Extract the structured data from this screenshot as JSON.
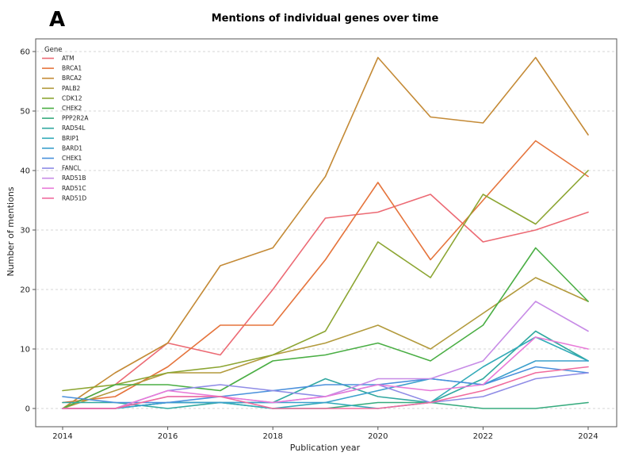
{
  "panel_letter": "A",
  "chart_data": {
    "type": "line",
    "title": "Mentions of individual genes over time",
    "xlabel": "Publication year",
    "ylabel": "Number of mentions",
    "x": [
      2014,
      2015,
      2016,
      2017,
      2018,
      2019,
      2020,
      2021,
      2022,
      2023,
      2024
    ],
    "xlim": [
      2014,
      2024
    ],
    "ylim": [
      0,
      60
    ],
    "xticks": [
      "2014",
      "2016",
      "2018",
      "2020",
      "2022",
      "2024"
    ],
    "xtick_values": [
      2014,
      2016,
      2018,
      2020,
      2022,
      2024
    ],
    "yticks": [
      "0",
      "10",
      "20",
      "30",
      "40",
      "50",
      "60"
    ],
    "ytick_values": [
      0,
      10,
      20,
      30,
      40,
      50,
      60
    ],
    "grid": "horizontal dashed",
    "legend": {
      "title": "Gene",
      "placement": "top-left"
    },
    "series": [
      {
        "name": "ATM",
        "color": "#ec6a74",
        "values": [
          0,
          4,
          11,
          9,
          20,
          32,
          33,
          36,
          28,
          30,
          33
        ]
      },
      {
        "name": "BRCA1",
        "color": "#e5743c",
        "values": [
          1,
          2,
          7,
          14,
          14,
          25,
          38,
          25,
          35,
          45,
          39
        ]
      },
      {
        "name": "BRCA2",
        "color": "#c48a36",
        "values": [
          0,
          6,
          11,
          24,
          27,
          39,
          59,
          49,
          48,
          59,
          46
        ]
      },
      {
        "name": "PALB2",
        "color": "#b29a3c",
        "values": [
          0,
          3,
          6,
          6,
          9,
          11,
          14,
          10,
          16,
          22,
          18
        ]
      },
      {
        "name": "CDK12",
        "color": "#8ca532",
        "values": [
          3,
          4,
          6,
          7,
          9,
          13,
          28,
          22,
          36,
          31,
          40
        ]
      },
      {
        "name": "CHEK2",
        "color": "#4aae44",
        "values": [
          0,
          4,
          4,
          3,
          8,
          9,
          11,
          8,
          14,
          27,
          18
        ]
      },
      {
        "name": "PPP2R2A",
        "color": "#36ab7e",
        "values": [
          0,
          0,
          1,
          1,
          0,
          0,
          1,
          1,
          0,
          0,
          1
        ]
      },
      {
        "name": "RAD54L",
        "color": "#31a8a0",
        "values": [
          1,
          1,
          0,
          1,
          1,
          5,
          2,
          1,
          5,
          13,
          8
        ]
      },
      {
        "name": "BRIP1",
        "color": "#32aab8",
        "values": [
          0,
          0,
          1,
          1,
          0,
          1,
          0,
          1,
          7,
          12,
          8
        ]
      },
      {
        "name": "BARD1",
        "color": "#3a9fcc",
        "values": [
          0,
          0,
          1,
          1,
          1,
          1,
          3,
          5,
          4,
          8,
          8
        ]
      },
      {
        "name": "CHEK1",
        "color": "#4a90dc",
        "values": [
          2,
          1,
          1,
          2,
          3,
          4,
          4,
          5,
          4,
          7,
          6
        ]
      },
      {
        "name": "FANCL",
        "color": "#8f8ce6",
        "values": [
          0,
          0,
          3,
          4,
          3,
          2,
          4,
          1,
          2,
          5,
          6
        ]
      },
      {
        "name": "RAD51B",
        "color": "#c78be6",
        "values": [
          0,
          0,
          2,
          2,
          1,
          2,
          5,
          5,
          8,
          18,
          13
        ]
      },
      {
        "name": "RAD51C",
        "color": "#e87ad8",
        "values": [
          0,
          0,
          3,
          2,
          1,
          2,
          4,
          3,
          4,
          12,
          10
        ]
      },
      {
        "name": "RAD51D",
        "color": "#f06b9e",
        "values": [
          0,
          0,
          2,
          2,
          0,
          0,
          0,
          1,
          3,
          6,
          7
        ]
      }
    ]
  }
}
